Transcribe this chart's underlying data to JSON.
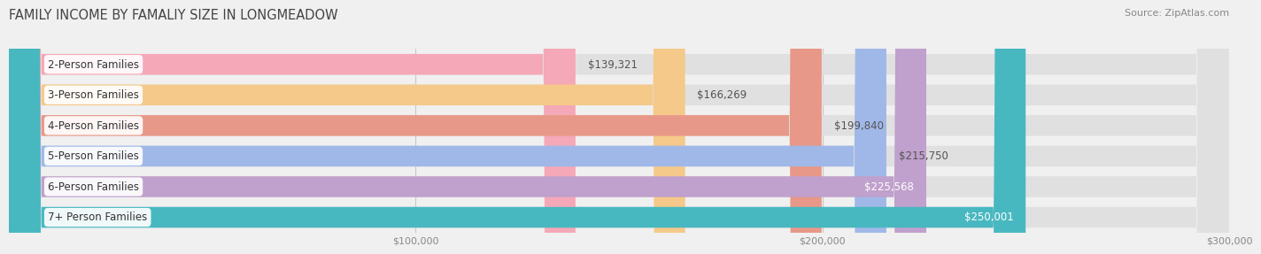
{
  "title": "FAMILY INCOME BY FAMALIY SIZE IN LONGMEADOW",
  "source": "Source: ZipAtlas.com",
  "categories": [
    "2-Person Families",
    "3-Person Families",
    "4-Person Families",
    "5-Person Families",
    "6-Person Families",
    "7+ Person Families"
  ],
  "values": [
    139321,
    166269,
    199840,
    215750,
    225568,
    250001
  ],
  "bar_colors": [
    "#f5a8b8",
    "#f5c98a",
    "#e89888",
    "#a0b8e8",
    "#c0a0cc",
    "#48b8c0"
  ],
  "label_colors": [
    "#555555",
    "#555555",
    "#555555",
    "#555555",
    "#ffffff",
    "#ffffff"
  ],
  "xlim": [
    0,
    300000
  ],
  "xticks": [
    100000,
    200000,
    300000
  ],
  "xtick_labels": [
    "$100,000",
    "$200,000",
    "$300,000"
  ],
  "bg_color": "#f0f0f0",
  "bar_bg_color": "#e0e0e0",
  "title_fontsize": 10.5,
  "source_fontsize": 8,
  "bar_height": 0.68,
  "bar_label_fontsize": 8.5,
  "cat_label_fontsize": 8.5
}
